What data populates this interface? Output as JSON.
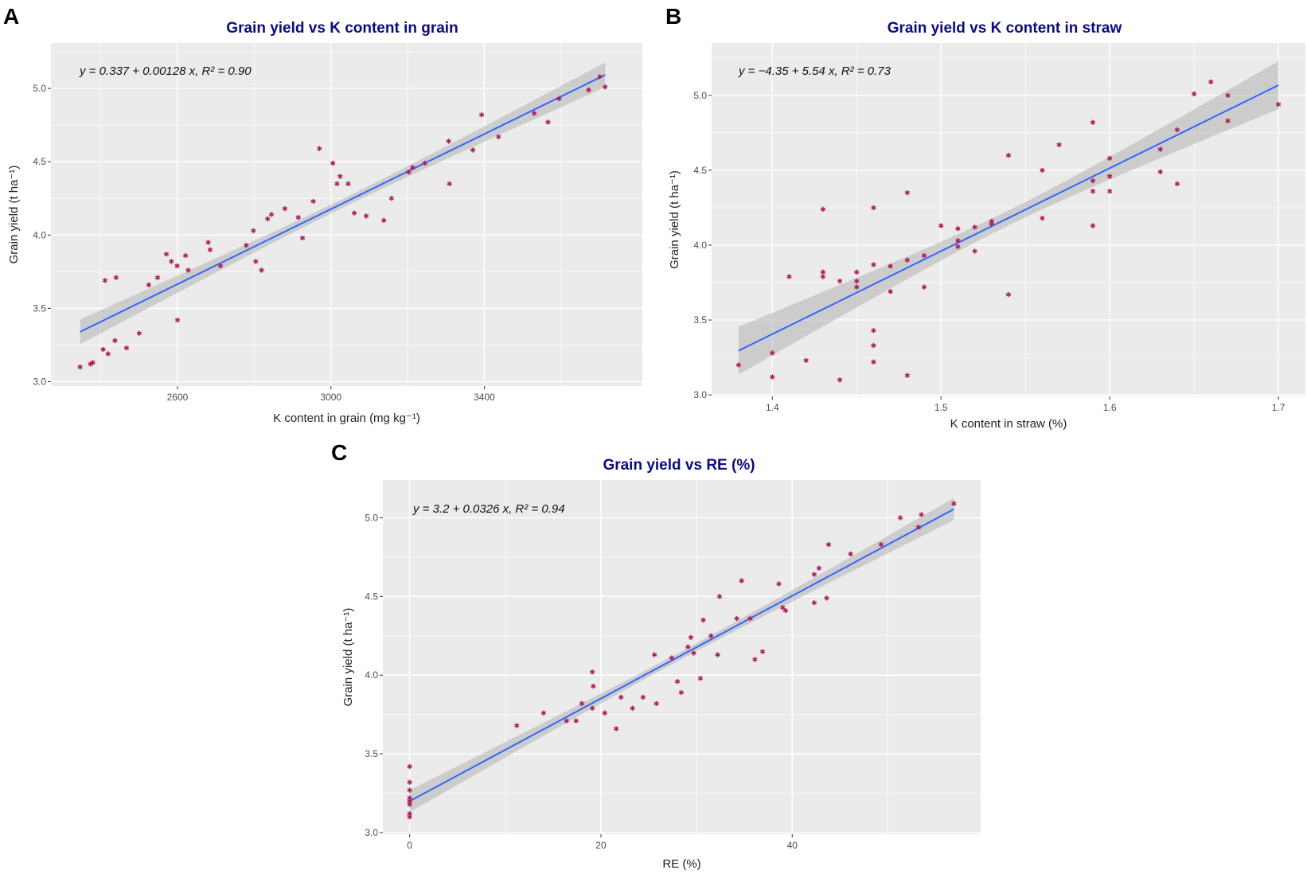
{
  "colors": {
    "panel_bg": "#EBEBEB",
    "grid": "#FFFFFF",
    "line": "#3366FF",
    "band": "#A6A6A6",
    "point": "#B01E5A",
    "title": "#0A0A8A"
  },
  "chart_data": [
    {
      "type": "scatter",
      "panel_label": "A",
      "title": "Grain yield vs K content in grain",
      "equation": "y = 0.337 + 0.00128 x, R² = 0.90",
      "xlabel": "K content in grain (mg kg⁻¹)",
      "ylabel": "Grain yield (t ha⁻¹)",
      "xlim": [
        2270,
        3812
      ],
      "ylim": [
        2.97,
        5.31
      ],
      "xticks": [
        2600,
        3000,
        3400
      ],
      "xminor": [
        2400,
        2800,
        3200,
        3600
      ],
      "yticks": [
        3.0,
        3.5,
        4.0,
        4.5,
        5.0
      ],
      "yminor": [
        3.25,
        3.75,
        4.25,
        4.75,
        5.25
      ],
      "xtick_labels": [
        "2600",
        "3000",
        "3400"
      ],
      "ytick_labels": [
        "3.0",
        "3.5",
        "4.0",
        "4.5",
        "5.0"
      ],
      "fit": {
        "intercept": 0.337,
        "slope": 0.00128,
        "x_range": [
          2346,
          3715
        ],
        "ci_halfwidth_ends": 0.085,
        "ci_halfwidth_center": 0.03
      },
      "points": [
        [
          2346,
          3.1
        ],
        [
          2373,
          3.12
        ],
        [
          2379,
          3.13
        ],
        [
          2406,
          3.22
        ],
        [
          2411,
          3.69
        ],
        [
          2419,
          3.19
        ],
        [
          2437,
          3.28
        ],
        [
          2440,
          3.71
        ],
        [
          2467,
          3.23
        ],
        [
          2500,
          3.33
        ],
        [
          2525,
          3.66
        ],
        [
          2548,
          3.71
        ],
        [
          2571,
          3.87
        ],
        [
          2584,
          3.82
        ],
        [
          2599,
          3.79
        ],
        [
          2600,
          3.42
        ],
        [
          2621,
          3.86
        ],
        [
          2628,
          3.76
        ],
        [
          2680,
          3.95
        ],
        [
          2685,
          3.9
        ],
        [
          2712,
          3.79
        ],
        [
          2779,
          3.93
        ],
        [
          2798,
          4.03
        ],
        [
          2804,
          3.82
        ],
        [
          2819,
          3.76
        ],
        [
          2835,
          4.11
        ],
        [
          2845,
          4.14
        ],
        [
          2880,
          4.18
        ],
        [
          2915,
          4.12
        ],
        [
          2926,
          3.98
        ],
        [
          2954,
          4.23
        ],
        [
          2970,
          4.59
        ],
        [
          3005,
          4.49
        ],
        [
          3016,
          4.35
        ],
        [
          3024,
          4.4
        ],
        [
          3045,
          4.35
        ],
        [
          3061,
          4.15
        ],
        [
          3092,
          4.13
        ],
        [
          3138,
          4.1
        ],
        [
          3158,
          4.25
        ],
        [
          3203,
          4.43
        ],
        [
          3213,
          4.46
        ],
        [
          3245,
          4.49
        ],
        [
          3307,
          4.64
        ],
        [
          3309,
          4.35
        ],
        [
          3370,
          4.58
        ],
        [
          3393,
          4.82
        ],
        [
          3437,
          4.67
        ],
        [
          3530,
          4.83
        ],
        [
          3566,
          4.77
        ],
        [
          3595,
          4.93
        ],
        [
          3672,
          4.99
        ],
        [
          3701,
          5.08
        ],
        [
          3715,
          5.01
        ]
      ]
    },
    {
      "type": "scatter",
      "panel_label": "B",
      "title": "Grain yield vs K content in straw",
      "equation": "y = −4.35 + 5.54 x, R² = 0.73",
      "xlabel": "K content in straw   (%)",
      "ylabel": "Grain yield (t ha⁻¹)",
      "xlim": [
        1.364,
        1.716
      ],
      "ylim": [
        2.99,
        5.35
      ],
      "xticks": [
        1.4,
        1.5,
        1.6,
        1.7
      ],
      "xminor": [
        1.45,
        1.55,
        1.65
      ],
      "yticks": [
        3.0,
        3.5,
        4.0,
        4.5,
        5.0
      ],
      "yminor": [
        3.25,
        3.75,
        4.25,
        4.75,
        5.25
      ],
      "xtick_labels": [
        "1.4",
        "1.5",
        "1.6",
        "1.7"
      ],
      "ytick_labels": [
        "3.0",
        "3.5",
        "4.0",
        "4.5",
        "5.0"
      ],
      "fit": {
        "intercept": -4.35,
        "slope": 5.54,
        "x_range": [
          1.38,
          1.7
        ],
        "ci_halfwidth_ends": 0.16,
        "ci_halfwidth_center": 0.05
      },
      "points": [
        [
          1.38,
          3.2
        ],
        [
          1.4,
          3.28
        ],
        [
          1.4,
          3.12
        ],
        [
          1.41,
          3.79
        ],
        [
          1.42,
          3.23
        ],
        [
          1.43,
          4.24
        ],
        [
          1.43,
          3.82
        ],
        [
          1.43,
          3.79
        ],
        [
          1.44,
          3.76
        ],
        [
          1.44,
          3.1
        ],
        [
          1.45,
          3.82
        ],
        [
          1.45,
          3.76
        ],
        [
          1.45,
          3.72
        ],
        [
          1.46,
          4.25
        ],
        [
          1.46,
          3.87
        ],
        [
          1.46,
          3.43
        ],
        [
          1.46,
          3.33
        ],
        [
          1.46,
          3.22
        ],
        [
          1.47,
          3.86
        ],
        [
          1.47,
          3.69
        ],
        [
          1.48,
          4.35
        ],
        [
          1.48,
          3.9
        ],
        [
          1.48,
          3.13
        ],
        [
          1.49,
          3.93
        ],
        [
          1.49,
          3.72
        ],
        [
          1.5,
          4.13
        ],
        [
          1.51,
          4.11
        ],
        [
          1.51,
          4.03
        ],
        [
          1.51,
          3.99
        ],
        [
          1.52,
          4.12
        ],
        [
          1.52,
          3.96
        ],
        [
          1.53,
          4.16
        ],
        [
          1.53,
          4.14
        ],
        [
          1.54,
          4.6
        ],
        [
          1.54,
          3.67
        ],
        [
          1.56,
          4.5
        ],
        [
          1.56,
          4.18
        ],
        [
          1.57,
          4.67
        ],
        [
          1.59,
          4.82
        ],
        [
          1.59,
          4.43
        ],
        [
          1.59,
          4.36
        ],
        [
          1.59,
          4.13
        ],
        [
          1.6,
          4.58
        ],
        [
          1.6,
          4.46
        ],
        [
          1.6,
          4.36
        ],
        [
          1.63,
          4.64
        ],
        [
          1.63,
          4.49
        ],
        [
          1.64,
          4.77
        ],
        [
          1.64,
          4.41
        ],
        [
          1.65,
          5.01
        ],
        [
          1.66,
          5.09
        ],
        [
          1.67,
          5.0
        ],
        [
          1.67,
          4.83
        ],
        [
          1.7,
          4.94
        ]
      ]
    },
    {
      "type": "scatter",
      "panel_label": "C",
      "title": "Grain yield vs RE (%)",
      "equation": "y = 3.2 + 0.0326 x, R² = 0.94",
      "xlabel": "RE   (%)",
      "ylabel": "Grain yield (t ha⁻¹)",
      "xlim": [
        -2.8,
        59.7
      ],
      "ylim": [
        2.99,
        5.24
      ],
      "xticks": [
        0,
        20,
        40
      ],
      "xminor": [
        10,
        30,
        50
      ],
      "yticks": [
        3.0,
        3.5,
        4.0,
        4.5,
        5.0
      ],
      "yminor": [
        3.25,
        3.75,
        4.25,
        4.75
      ],
      "xtick_labels": [
        "0",
        "20",
        "40"
      ],
      "ytick_labels": [
        "3.0",
        "3.5",
        "4.0",
        "4.5",
        "5.0"
      ],
      "fit": {
        "intercept": 3.2,
        "slope": 0.0326,
        "x_range": [
          0,
          56.9
        ],
        "ci_halfwidth_ends": 0.07,
        "ci_halfwidth_center": 0.025
      },
      "points": [
        [
          0,
          3.42
        ],
        [
          0,
          3.32
        ],
        [
          0,
          3.27
        ],
        [
          0,
          3.22
        ],
        [
          0,
          3.2
        ],
        [
          0,
          3.18
        ],
        [
          0,
          3.12
        ],
        [
          0,
          3.1
        ],
        [
          11.2,
          3.68
        ],
        [
          14.0,
          3.76
        ],
        [
          16.4,
          3.71
        ],
        [
          17.4,
          3.71
        ],
        [
          18.0,
          3.82
        ],
        [
          19.1,
          4.02
        ],
        [
          19.2,
          3.93
        ],
        [
          19.1,
          3.79
        ],
        [
          20.4,
          3.76
        ],
        [
          21.6,
          3.66
        ],
        [
          22.1,
          3.86
        ],
        [
          23.3,
          3.79
        ],
        [
          24.4,
          3.86
        ],
        [
          25.6,
          4.13
        ],
        [
          25.8,
          3.82
        ],
        [
          27.4,
          4.11
        ],
        [
          28.0,
          3.96
        ],
        [
          28.4,
          3.89
        ],
        [
          29.1,
          4.18
        ],
        [
          29.4,
          4.24
        ],
        [
          29.7,
          4.14
        ],
        [
          30.4,
          3.98
        ],
        [
          30.7,
          4.35
        ],
        [
          31.5,
          4.25
        ],
        [
          32.2,
          4.13
        ],
        [
          32.4,
          4.5
        ],
        [
          34.2,
          4.36
        ],
        [
          34.7,
          4.6
        ],
        [
          35.6,
          4.36
        ],
        [
          36.1,
          4.1
        ],
        [
          36.9,
          4.15
        ],
        [
          38.6,
          4.58
        ],
        [
          39.0,
          4.43
        ],
        [
          39.3,
          4.41
        ],
        [
          42.3,
          4.64
        ],
        [
          42.3,
          4.46
        ],
        [
          42.8,
          4.68
        ],
        [
          43.6,
          4.49
        ],
        [
          43.8,
          4.83
        ],
        [
          46.1,
          4.77
        ],
        [
          49.3,
          4.83
        ],
        [
          51.3,
          5.0
        ],
        [
          53.2,
          4.94
        ],
        [
          53.5,
          5.02
        ],
        [
          56.9,
          5.09
        ]
      ]
    }
  ]
}
